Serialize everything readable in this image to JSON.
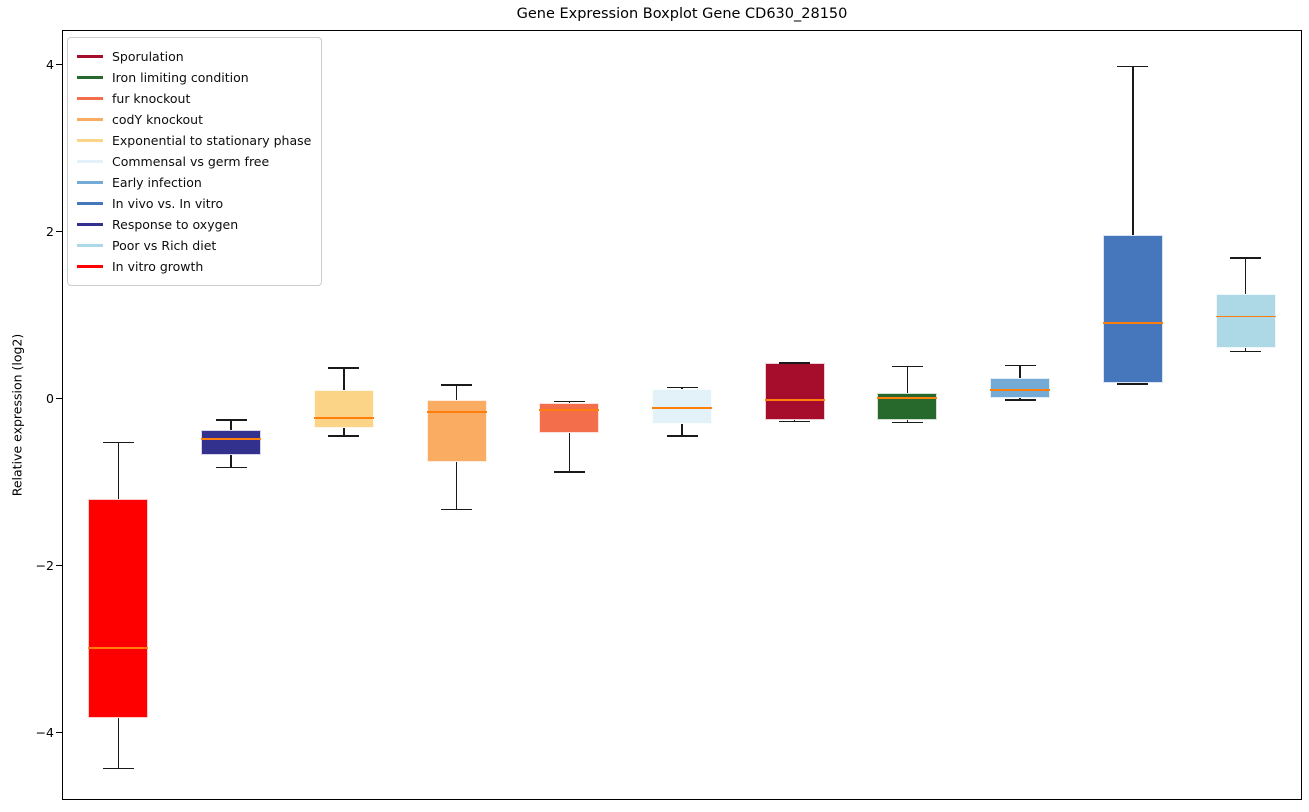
{
  "chart_data": {
    "type": "boxplot",
    "title": "Gene Expression Boxplot Gene CD630_28150",
    "xlabel": "",
    "ylabel": "Relative expression (log2)",
    "ylim": [
      -4.81,
      4.41
    ],
    "grid": false,
    "legend_position": "upper left",
    "yticks": [
      {
        "value": 4,
        "label": "4"
      },
      {
        "value": 2,
        "label": "2"
      },
      {
        "value": 0,
        "label": "0"
      },
      {
        "value": -2,
        "label": "−2"
      },
      {
        "value": -4,
        "label": "−4"
      }
    ],
    "median_color": "#FF7F0E",
    "whisker_color": "#1a1a1a",
    "box_edge_color": "rgba(255,255,255,0.8)",
    "categories": [
      "In vitro growth",
      "Response to oxygen",
      "Exponential to stationary phase",
      "codY knockout",
      "fur knockout",
      "Commensal vs germ free",
      "Sporulation",
      "Iron limiting condition",
      "Early infection",
      "In vivo vs. In vitro",
      "Poor vs Rich diet"
    ],
    "series": [
      {
        "name": "In vitro growth",
        "color": "#FF0000",
        "whisker_low": -4.43,
        "q1": -3.83,
        "median": -2.99,
        "q3": -1.2,
        "whisker_high": -0.53
      },
      {
        "name": "Response to oxygen",
        "color": "#32328E",
        "whisker_low": -0.83,
        "q1": -0.68,
        "median": -0.49,
        "q3": -0.38,
        "whisker_high": -0.26
      },
      {
        "name": "Exponential to stationary phase",
        "color": "#FCD488",
        "whisker_low": -0.45,
        "q1": -0.35,
        "median": -0.24,
        "q3": 0.1,
        "whisker_high": 0.36
      },
      {
        "name": "codY knockout",
        "color": "#FBAC63",
        "whisker_low": -1.33,
        "q1": -0.76,
        "median": -0.16,
        "q3": -0.02,
        "whisker_high": 0.16
      },
      {
        "name": "fur knockout",
        "color": "#F36F4B",
        "whisker_low": -0.88,
        "q1": -0.41,
        "median": -0.14,
        "q3": -0.06,
        "whisker_high": -0.04
      },
      {
        "name": "Commensal vs germ free",
        "color": "#E2F2F8",
        "whisker_low": -0.45,
        "q1": -0.31,
        "median": -0.12,
        "q3": 0.11,
        "whisker_high": 0.13
      },
      {
        "name": "Sporulation",
        "color": "#A60D2C",
        "whisker_low": -0.28,
        "q1": -0.26,
        "median": -0.02,
        "q3": 0.42,
        "whisker_high": 0.42
      },
      {
        "name": "Iron limiting condition",
        "color": "#27692C",
        "whisker_low": -0.29,
        "q1": -0.26,
        "median": 0.0,
        "q3": 0.06,
        "whisker_high": 0.38
      },
      {
        "name": "Early infection",
        "color": "#74ABD6",
        "whisker_low": -0.02,
        "q1": 0.0,
        "median": 0.1,
        "q3": 0.24,
        "whisker_high": 0.39
      },
      {
        "name": "In vivo vs. In vitro",
        "color": "#4677BD",
        "whisker_low": 0.17,
        "q1": 0.18,
        "median": 0.9,
        "q3": 1.96,
        "whisker_high": 3.97
      },
      {
        "name": "Poor vs Rich diet",
        "color": "#ADD8E6",
        "whisker_low": 0.56,
        "q1": 0.6,
        "median": 0.98,
        "q3": 1.25,
        "whisker_high": 1.68
      }
    ]
  },
  "legend": {
    "entries": [
      {
        "label": "Sporulation",
        "color": "#A60D2C"
      },
      {
        "label": "Iron limiting condition",
        "color": "#27692C"
      },
      {
        "label": "fur knockout",
        "color": "#F36F4B"
      },
      {
        "label": "codY knockout",
        "color": "#FBAC63"
      },
      {
        "label": "Exponential to stationary phase",
        "color": "#FCD488"
      },
      {
        "label": "Commensal vs germ free",
        "color": "#E2F2F8"
      },
      {
        "label": "Early infection",
        "color": "#74ABD6"
      },
      {
        "label": "In vivo vs. In vitro",
        "color": "#4677BD"
      },
      {
        "label": "Response to oxygen",
        "color": "#32328E"
      },
      {
        "label": "Poor vs Rich diet",
        "color": "#ADD8E6"
      },
      {
        "label": "In vitro growth",
        "color": "#FF0000"
      }
    ]
  }
}
